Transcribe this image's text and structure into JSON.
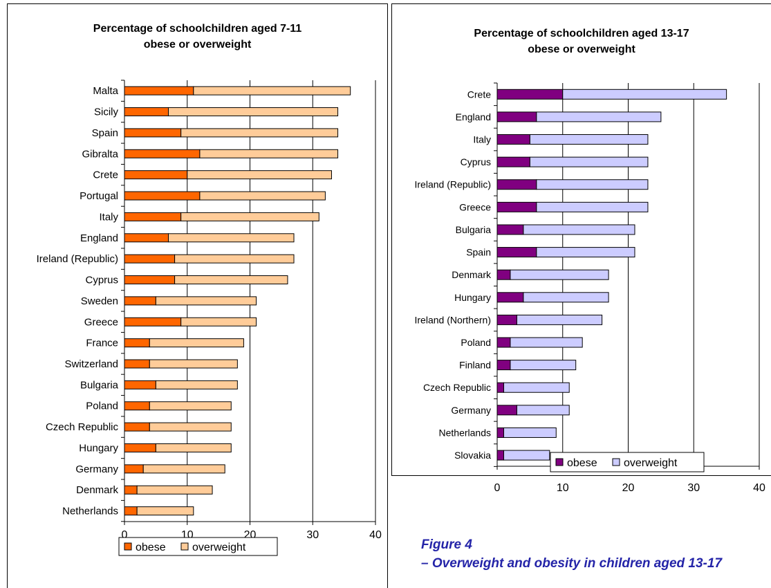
{
  "figure_caption": {
    "label": "Figure 4",
    "text": "– Overweight and obesity in children aged 13-17"
  },
  "colors": {
    "left_obese": "#ff6600",
    "left_overweight": "#ffcc99",
    "right_obese": "#800080",
    "right_overweight": "#ccccff"
  },
  "chart_data": [
    {
      "type": "bar",
      "orientation": "horizontal",
      "stacked": true,
      "title": "Percentage of schoolchildren aged 7-11\nobese or overweight",
      "categories": [
        "Malta",
        "Sicily",
        "Spain",
        "Gibralta",
        "Crete",
        "Portugal",
        "Italy",
        "England",
        "Ireland (Republic)",
        "Cyprus",
        "Sweden",
        "Greece",
        "France",
        "Switzerland",
        "Bulgaria",
        "Poland",
        "Czech Republic",
        "Hungary",
        "Germany",
        "Denmark",
        "Netherlands"
      ],
      "series": [
        {
          "name": "obese",
          "values": [
            11,
            7,
            9,
            12,
            10,
            12,
            9,
            7,
            8,
            8,
            5,
            9,
            4,
            4,
            5,
            4,
            4,
            5,
            3,
            2,
            2
          ]
        },
        {
          "name": "overweight",
          "values": [
            25,
            27,
            25,
            22,
            23,
            20,
            22,
            20,
            19,
            18,
            16,
            12,
            15,
            14,
            13,
            13,
            13,
            12,
            13,
            12,
            9
          ]
        }
      ],
      "xlim": [
        0,
        40
      ],
      "xticks": [
        "0",
        "10",
        "20",
        "30",
        "40"
      ],
      "grid": true,
      "legend_position": "bottom"
    },
    {
      "type": "bar",
      "orientation": "horizontal",
      "stacked": true,
      "title": "Percentage of schoolchildren aged 13-17\nobese or overweight",
      "categories": [
        "Crete",
        "England",
        "Italy",
        "Cyprus",
        "Ireland (Republic)",
        "Greece",
        "Bulgaria",
        "Spain",
        "Denmark",
        "Hungary",
        "Ireland (Northern)",
        "Poland",
        "Finland",
        "Czech Republic",
        "Germany",
        "Netherlands",
        "Slovakia"
      ],
      "series": [
        {
          "name": "obese",
          "values": [
            10,
            6,
            5,
            5,
            6,
            6,
            4,
            6,
            2,
            4,
            3,
            2,
            2,
            1,
            3,
            1,
            1
          ]
        },
        {
          "name": "overweight",
          "values": [
            25,
            19,
            18,
            18,
            17,
            17,
            17,
            15,
            15,
            13,
            13,
            11,
            10,
            10,
            8,
            8,
            7
          ]
        }
      ],
      "xlim": [
        0,
        40
      ],
      "xticks": [
        "0",
        "10",
        "20",
        "30",
        "40"
      ],
      "grid": true,
      "legend_position": "bottom"
    }
  ]
}
